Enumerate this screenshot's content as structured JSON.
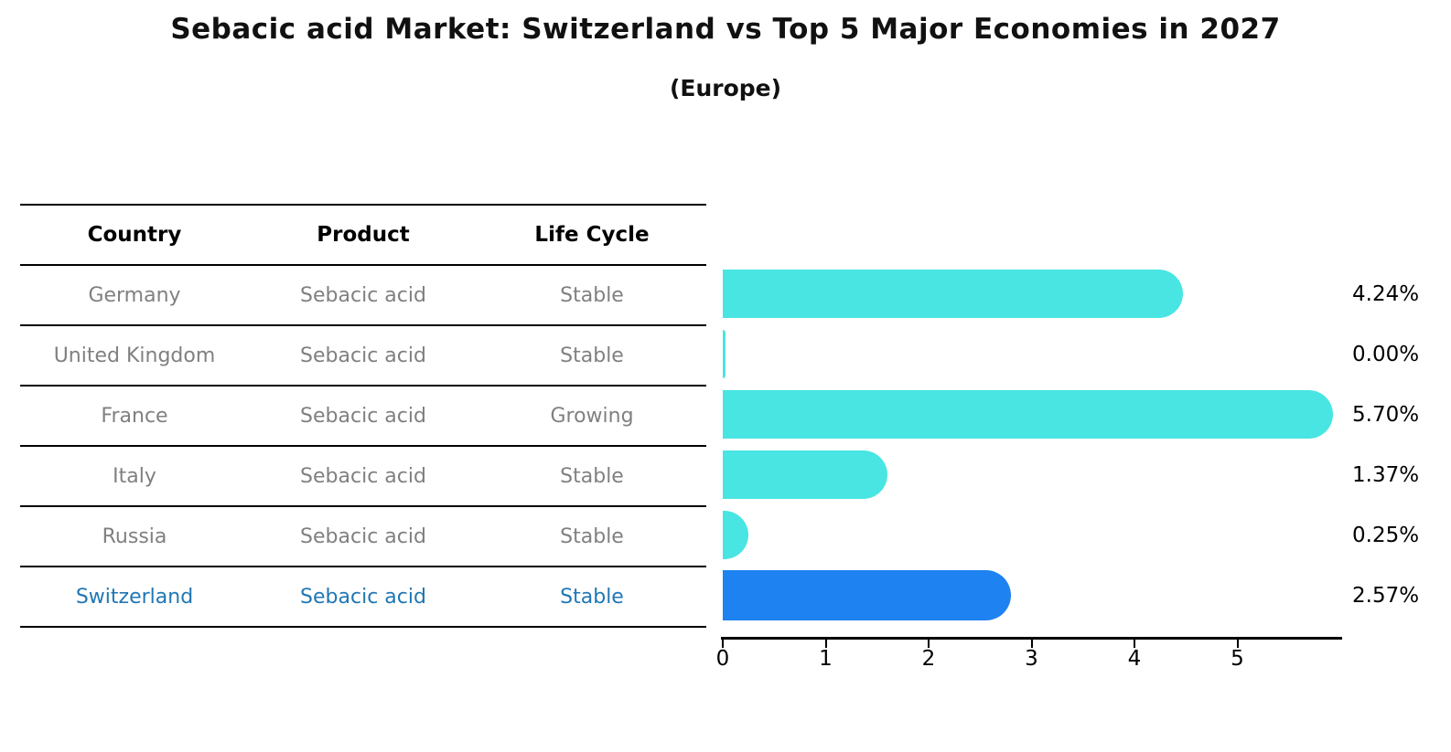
{
  "title": "Sebacic acid Market: Switzerland vs Top 5 Major Economies in 2027",
  "subtitle": "(Europe)",
  "table": {
    "headers": [
      "Country",
      "Product",
      "Life Cycle"
    ]
  },
  "rows": [
    {
      "country": "Germany",
      "product": "Sebacic acid",
      "life_cycle": "Stable",
      "value_label": "4.24%",
      "highlight": false
    },
    {
      "country": "United Kingdom",
      "product": "Sebacic acid",
      "life_cycle": "Stable",
      "value_label": "0.00%",
      "highlight": false
    },
    {
      "country": "France",
      "product": "Sebacic acid",
      "life_cycle": "Growing",
      "value_label": "5.70%",
      "highlight": false
    },
    {
      "country": "Italy",
      "product": "Sebacic acid",
      "life_cycle": "Stable",
      "value_label": "1.37%",
      "highlight": false
    },
    {
      "country": "Russia",
      "product": "Sebacic acid",
      "life_cycle": "Stable",
      "value_label": "0.25%",
      "highlight": false
    },
    {
      "country": "Switzerland",
      "product": "Sebacic acid",
      "life_cycle": "Stable",
      "value_label": "2.57%",
      "highlight": true
    }
  ],
  "chart_data": {
    "type": "bar",
    "orientation": "horizontal",
    "title": "Sebacic acid Market: Switzerland vs Top 5 Major Economies in 2027 (Europe)",
    "categories": [
      "Germany",
      "United Kingdom",
      "France",
      "Italy",
      "Russia",
      "Switzerland"
    ],
    "values": [
      4.24,
      0.0,
      5.7,
      1.37,
      0.25,
      2.57
    ],
    "value_labels": [
      "4.24%",
      "0.00%",
      "5.70%",
      "1.37%",
      "0.25%",
      "2.57%"
    ],
    "xlabel": "",
    "ylabel": "",
    "xlim": [
      0,
      6
    ],
    "xticks": [
      0,
      1,
      2,
      3,
      4,
      5
    ],
    "grid": false,
    "legend": "none",
    "highlight_index": 5,
    "colors": {
      "bar": "#48E5E3",
      "highlight_bar": "#1E82F0",
      "highlight_text": "#1F77B4",
      "table_text": "#808080",
      "header_text": "#000000",
      "label_text": "#000000"
    }
  }
}
